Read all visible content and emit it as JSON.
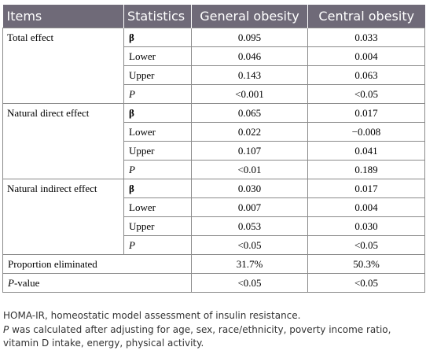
{
  "table": {
    "headers": [
      "Items",
      "Statistics",
      "General obesity",
      "Central obesity"
    ],
    "groups": [
      {
        "item": "Total effect",
        "rows": [
          {
            "stat": "β",
            "general": "0.095",
            "central": "0.033"
          },
          {
            "stat": "Lower",
            "general": "0.046",
            "central": "0.004"
          },
          {
            "stat": "Upper",
            "general": "0.143",
            "central": "0.063"
          },
          {
            "stat": "P",
            "general": "<0.001",
            "central": "<0.05"
          }
        ]
      },
      {
        "item": "Natural direct effect",
        "rows": [
          {
            "stat": "β",
            "general": "0.065",
            "central": "0.017"
          },
          {
            "stat": "Lower",
            "general": "0.022",
            "central": "−0.008"
          },
          {
            "stat": "Upper",
            "general": "0.107",
            "central": "0.041"
          },
          {
            "stat": "P",
            "general": "<0.01",
            "central": "0.189"
          }
        ]
      },
      {
        "item": "Natural indirect effect",
        "rows": [
          {
            "stat": "β",
            "general": "0.030",
            "central": "0.017"
          },
          {
            "stat": "Lower",
            "general": "0.007",
            "central": "0.004"
          },
          {
            "stat": "Upper",
            "general": "0.053",
            "central": "0.030"
          },
          {
            "stat": "P",
            "general": "<0.05",
            "central": "<0.05"
          }
        ]
      }
    ],
    "summary_rows": [
      {
        "label_italic": "",
        "label": "Proportion eliminated",
        "general": "31.7%",
        "central": "50.3%"
      },
      {
        "label_italic": "P",
        "label": "-value",
        "general": "<0.05",
        "central": "<0.05"
      }
    ]
  },
  "notes": {
    "abbreviation": "HOMA-IR, homeostatic model assessment of insulin resistance.",
    "p_symbol": "P",
    "p_note_line1": " was calculated after adjusting for age, sex, race/ethnicity, poverty income ratio,",
    "p_note_line2": "vitamin D intake, energy, physical activity."
  },
  "colors": {
    "header_bg": "#6f6a78",
    "header_text": "#ffffff",
    "border": "#8a8a8a"
  }
}
